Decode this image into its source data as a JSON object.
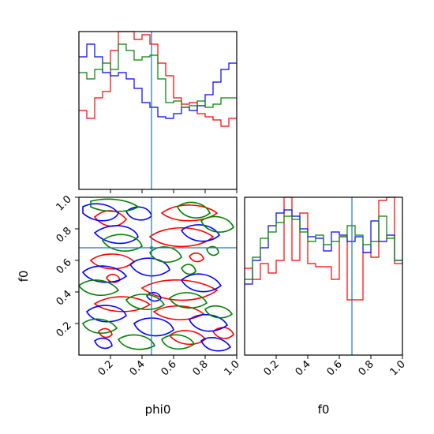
{
  "chart_data": {
    "type": "corner",
    "parameters": [
      "phi0",
      "f0"
    ],
    "xlabels": [
      "phi0",
      "f0"
    ],
    "ylabels": [
      "",
      "f0"
    ],
    "truths": {
      "phi0": 0.46,
      "f0": 0.68
    },
    "truth_color": "#1f77b4",
    "series_colors": [
      "#ff0000",
      "#0000ff",
      "#008000"
    ],
    "ranges": {
      "phi0": [
        0.0,
        1.0
      ],
      "f0": [
        0.0,
        1.0
      ]
    },
    "ticks": [
      0.2,
      0.4,
      0.6,
      0.8,
      1.0
    ],
    "tick_labels": [
      "0.2",
      "0.4",
      "0.6",
      "0.8",
      "1.0"
    ],
    "hist_phi0": {
      "bin_edges": [
        0.0,
        0.05,
        0.1,
        0.15,
        0.2,
        0.25,
        0.3,
        0.35,
        0.4,
        0.45,
        0.5,
        0.55,
        0.6,
        0.65,
        0.7,
        0.75,
        0.8,
        0.85,
        0.9,
        0.95,
        1.0
      ],
      "series": [
        {
          "color": "#ff0000",
          "values": [
            0.5,
            0.45,
            0.58,
            0.62,
            0.88,
            1.0,
            1.0,
            0.95,
            0.98,
            0.92,
            0.8,
            0.72,
            0.58,
            0.54,
            0.55,
            0.48,
            0.46,
            0.44,
            0.4,
            0.45
          ]
        },
        {
          "color": "#0000ff",
          "values": [
            0.84,
            0.92,
            0.84,
            0.74,
            0.72,
            0.74,
            0.7,
            0.64,
            0.55,
            0.52,
            0.46,
            0.45,
            0.48,
            0.52,
            0.5,
            0.53,
            0.6,
            0.68,
            0.76,
            0.8
          ]
        },
        {
          "color": "#008000",
          "values": [
            0.74,
            0.7,
            0.76,
            0.8,
            0.76,
            0.92,
            0.88,
            0.82,
            0.84,
            0.85,
            0.7,
            0.55,
            0.56,
            0.52,
            0.53,
            0.56,
            0.52,
            0.54,
            0.58,
            0.58
          ]
        }
      ]
    },
    "hist_f0": {
      "bin_edges": [
        0.0,
        0.05,
        0.1,
        0.15,
        0.2,
        0.25,
        0.3,
        0.35,
        0.4,
        0.45,
        0.5,
        0.55,
        0.6,
        0.65,
        0.7,
        0.75,
        0.8,
        0.85,
        0.9,
        0.95,
        1.0
      ],
      "series": [
        {
          "color": "#ff0000",
          "values": [
            0.55,
            0.48,
            0.58,
            0.52,
            0.6,
            1.0,
            0.6,
            0.9,
            0.58,
            0.56,
            0.56,
            0.48,
            0.75,
            0.35,
            0.35,
            0.65,
            0.62,
            0.98,
            1.0,
            0.58
          ]
        },
        {
          "color": "#0000ff",
          "values": [
            0.45,
            0.6,
            0.68,
            0.82,
            0.9,
            0.92,
            0.88,
            0.8,
            0.75,
            0.74,
            0.66,
            0.78,
            0.76,
            0.72,
            0.75,
            0.65,
            0.85,
            0.72,
            0.76,
            0.6
          ]
        },
        {
          "color": "#008000",
          "values": [
            0.48,
            0.62,
            0.74,
            0.78,
            0.84,
            0.88,
            0.86,
            0.78,
            0.72,
            0.76,
            0.7,
            0.72,
            0.75,
            0.82,
            0.76,
            0.7,
            0.72,
            0.88,
            0.74,
            0.6
          ]
        }
      ]
    }
  }
}
